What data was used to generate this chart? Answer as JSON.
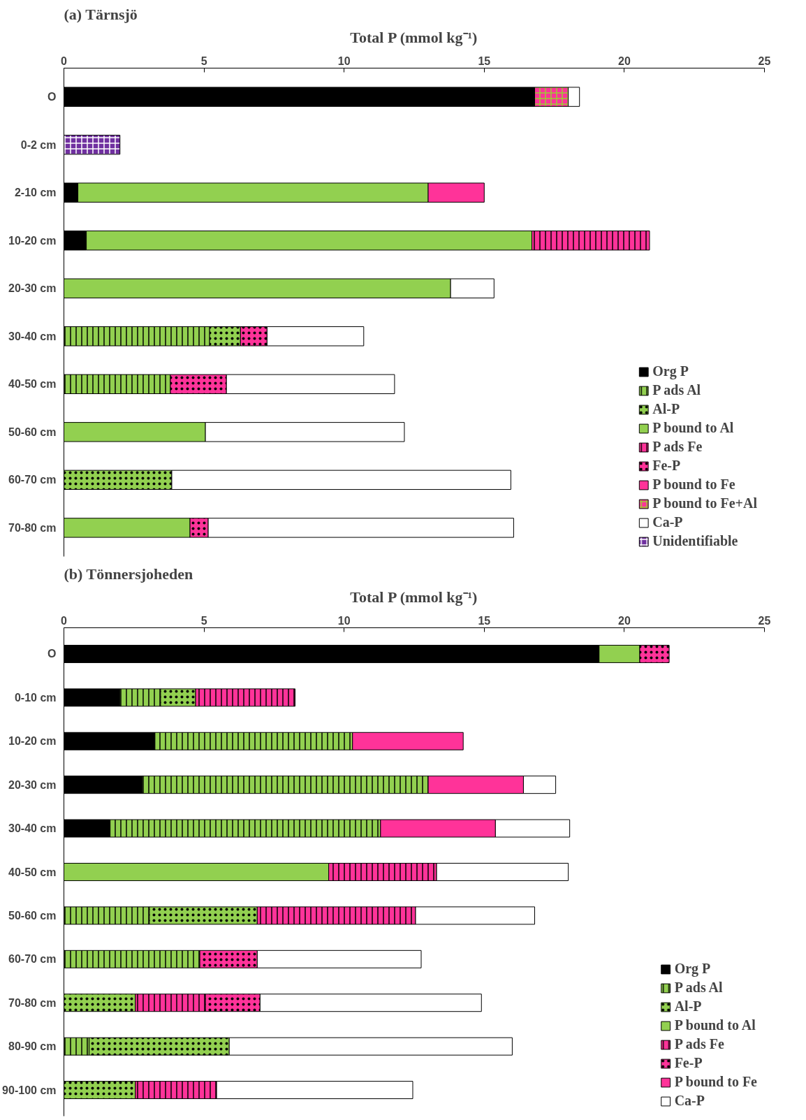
{
  "chart_data": [
    {
      "type": "bar",
      "orientation": "horizontal",
      "stacked": true,
      "title": "(a) Tärnsjö",
      "xlabel": "Total P (mmol kg⁻¹)",
      "xlim": [
        0,
        25
      ],
      "xticks": [
        0,
        5,
        10,
        15,
        20,
        25
      ],
      "grid": false,
      "legend": "bottom right",
      "categories": [
        "O",
        "0-2 cm",
        "2-10 cm",
        "10-20 cm",
        "20-30 cm",
        "30-40 cm",
        "40-50 cm",
        "50-60 cm",
        "60-70 cm",
        "70-80 cm"
      ],
      "series": [
        {
          "name": "Org P",
          "color": "#000000",
          "values": [
            16.8,
            null,
            0.5,
            0.8,
            null,
            null,
            null,
            null,
            null,
            null
          ]
        },
        {
          "name": "P ads Al",
          "color": "#92d050",
          "values": [
            null,
            null,
            null,
            null,
            null,
            5.2,
            3.8,
            null,
            null,
            null
          ]
        },
        {
          "name": "Al-P",
          "color": "#92d050",
          "values": [
            null,
            null,
            null,
            null,
            null,
            1.1,
            null,
            null,
            3.85,
            null
          ]
        },
        {
          "name": "P bound to Al",
          "color": "#92d050",
          "values": [
            null,
            null,
            12.5,
            15.9,
            13.8,
            null,
            null,
            5.05,
            null,
            4.5
          ]
        },
        {
          "name": "P ads Fe",
          "color": "#ff3399",
          "values": [
            null,
            null,
            null,
            4.2,
            null,
            null,
            null,
            null,
            null,
            null
          ]
        },
        {
          "name": "Fe-P",
          "color": "#ff3399",
          "values": [
            null,
            null,
            null,
            null,
            null,
            0.95,
            2.0,
            null,
            null,
            0.65
          ]
        },
        {
          "name": "P bound to Fe",
          "color": "#ff3399",
          "values": [
            null,
            null,
            2.0,
            null,
            null,
            null,
            null,
            null,
            null,
            null
          ]
        },
        {
          "name": "P bound to Fe+Al",
          "color": "#ff3399",
          "values": [
            1.2,
            null,
            null,
            null,
            null,
            null,
            null,
            null,
            null,
            null
          ]
        },
        {
          "name": "Ca-P",
          "color": "#ffffff",
          "values": [
            0.4,
            null,
            null,
            null,
            1.55,
            3.45,
            6.0,
            7.1,
            12.1,
            10.9
          ]
        },
        {
          "name": "Unidentifiable",
          "color": "#7030a0",
          "values": [
            null,
            2.0,
            null,
            null,
            null,
            null,
            null,
            null,
            null,
            null
          ]
        }
      ]
    },
    {
      "type": "bar",
      "orientation": "horizontal",
      "stacked": true,
      "title": "(b) Tönnersjoheden",
      "xlabel": "Total P (mmol kg⁻¹)",
      "xlim": [
        0,
        25
      ],
      "xticks": [
        0,
        5,
        10,
        15,
        20,
        25
      ],
      "grid": false,
      "legend": "bottom right",
      "categories": [
        "O",
        "0-10 cm",
        "10-20 cm",
        "20-30 cm",
        "30-40 cm",
        "40-50 cm",
        "50-60 cm",
        "60-70 cm",
        "70-80 cm",
        "80-90 cm",
        "90-100 cm"
      ],
      "series": [
        {
          "name": "Org P",
          "color": "#000000",
          "values": [
            19.1,
            2.0,
            3.25,
            2.8,
            1.65,
            null,
            null,
            null,
            null,
            null,
            null
          ]
        },
        {
          "name": "P ads Al",
          "color": "#92d050",
          "values": [
            null,
            1.45,
            7.05,
            10.2,
            9.65,
            null,
            3.05,
            4.85,
            null,
            0.9,
            null
          ]
        },
        {
          "name": "Al-P",
          "color": "#92d050",
          "values": [
            null,
            1.25,
            null,
            null,
            null,
            null,
            3.85,
            null,
            2.55,
            5.0,
            2.55
          ]
        },
        {
          "name": "P bound to Al",
          "color": "#92d050",
          "values": [
            1.45,
            null,
            null,
            null,
            null,
            9.45,
            null,
            null,
            null,
            null,
            null
          ]
        },
        {
          "name": "P ads Fe",
          "color": "#ff3399",
          "values": [
            null,
            3.55,
            null,
            null,
            null,
            3.85,
            5.65,
            null,
            2.5,
            null,
            2.9
          ]
        },
        {
          "name": "Fe-P",
          "color": "#ff3399",
          "values": [
            1.05,
            null,
            null,
            null,
            null,
            null,
            null,
            2.05,
            1.95,
            null,
            null
          ]
        },
        {
          "name": "P bound to Fe",
          "color": "#ff3399",
          "values": [
            null,
            null,
            3.95,
            3.4,
            4.1,
            null,
            null,
            null,
            null,
            null,
            null
          ]
        },
        {
          "name": "Ca-P",
          "color": "#ffffff",
          "values": [
            null,
            null,
            null,
            1.15,
            2.65,
            4.7,
            4.25,
            5.85,
            7.9,
            10.1,
            7.0
          ]
        }
      ]
    }
  ]
}
